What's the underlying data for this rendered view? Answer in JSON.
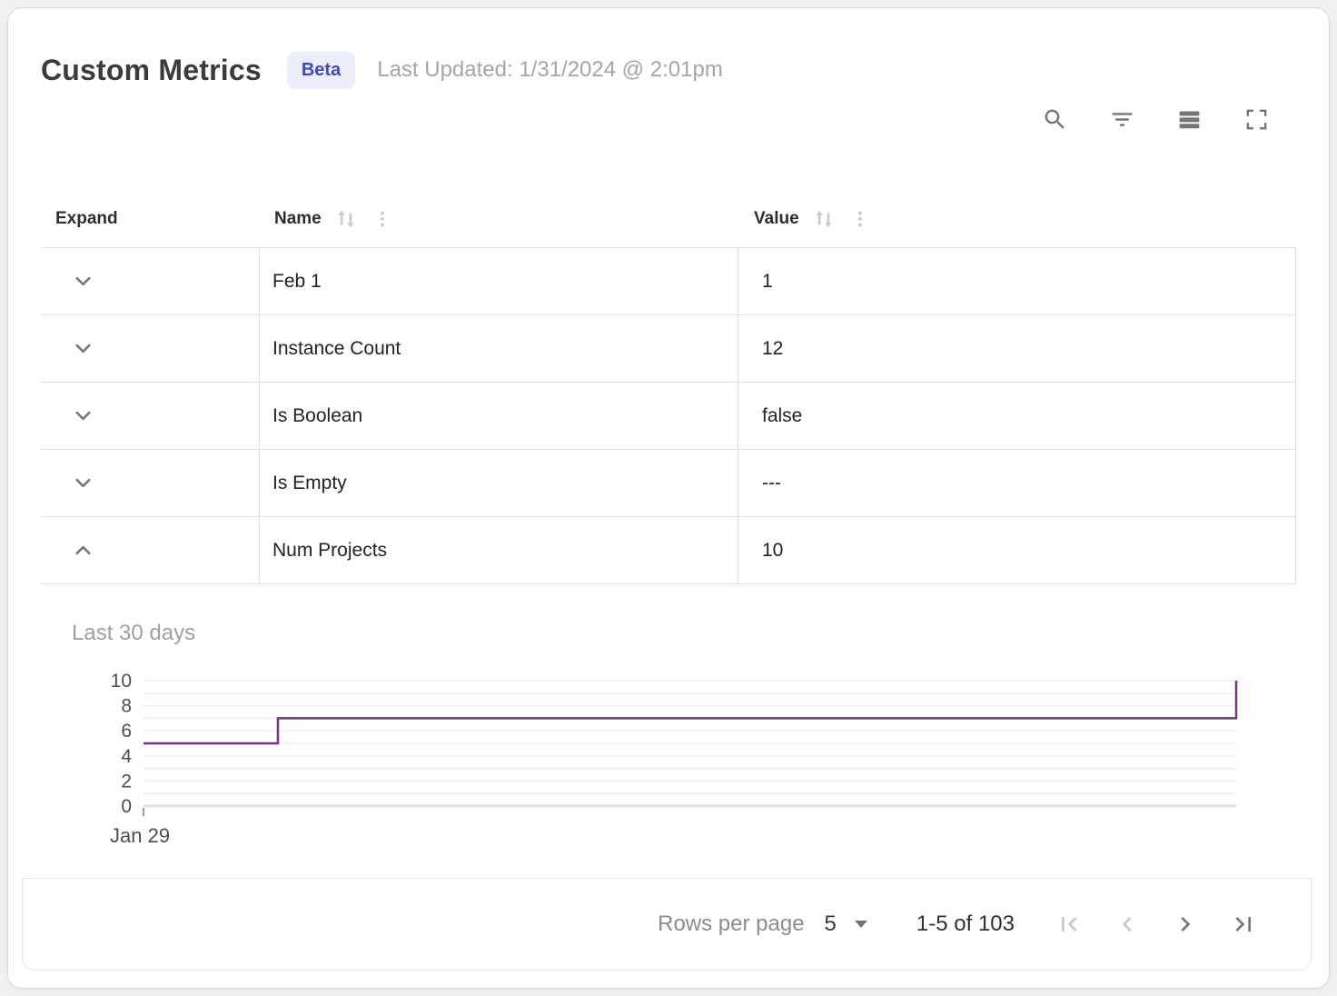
{
  "header": {
    "title": "Custom Metrics",
    "badge": "Beta",
    "last_updated": "Last Updated: 1/31/2024 @ 2:01pm"
  },
  "toolbar": {
    "icons": [
      "search",
      "filter",
      "density",
      "fullscreen"
    ]
  },
  "table": {
    "columns": [
      {
        "label": "Expand",
        "sortable": false
      },
      {
        "label": "Name",
        "sortable": true
      },
      {
        "label": "Value",
        "sortable": true
      }
    ],
    "rows": [
      {
        "name": "Feb 1",
        "value": "1",
        "expanded": false
      },
      {
        "name": "Instance Count",
        "value": "12",
        "expanded": false
      },
      {
        "name": "Is Boolean",
        "value": "false",
        "expanded": false
      },
      {
        "name": "Is Empty",
        "value": "---",
        "expanded": false
      },
      {
        "name": "Num Projects",
        "value": "10",
        "expanded": true
      }
    ]
  },
  "detail_panel": {
    "title": "Last 30 days"
  },
  "chart_data": {
    "type": "line",
    "subtype": "step",
    "title": "Last 30 days",
    "series": [
      {
        "name": "Num Projects",
        "points": [
          {
            "x": 0,
            "y": 5
          },
          {
            "x": 0.123,
            "y": 5
          },
          {
            "x": 0.123,
            "y": 7
          },
          {
            "x": 1,
            "y": 7
          },
          {
            "x": 1,
            "y": 10
          }
        ]
      }
    ],
    "ylim": [
      0,
      10
    ],
    "y_ticks": [
      0,
      2,
      4,
      6,
      8,
      10
    ],
    "x_tick_labels": [
      "Jan 29"
    ],
    "grid": "horizontal",
    "line_color": "#72387a",
    "gridline_color": "#efefef",
    "axis_line_color": "#e0e0e0",
    "tick_label_color": "#4c4c55"
  },
  "pagination": {
    "rows_per_page_label": "Rows per page",
    "rows_per_page_value": "5",
    "range_label": "1-5 of 103",
    "first_disabled": true,
    "prev_disabled": true,
    "next_disabled": false,
    "last_disabled": false
  },
  "colors": {
    "accent_line": "#72387a",
    "badge_bg": "#eceefc",
    "badge_text": "#4149b8",
    "border": "#e0e0e0",
    "icon_gray": "#757575",
    "muted_gray": "#a0a0a0"
  }
}
